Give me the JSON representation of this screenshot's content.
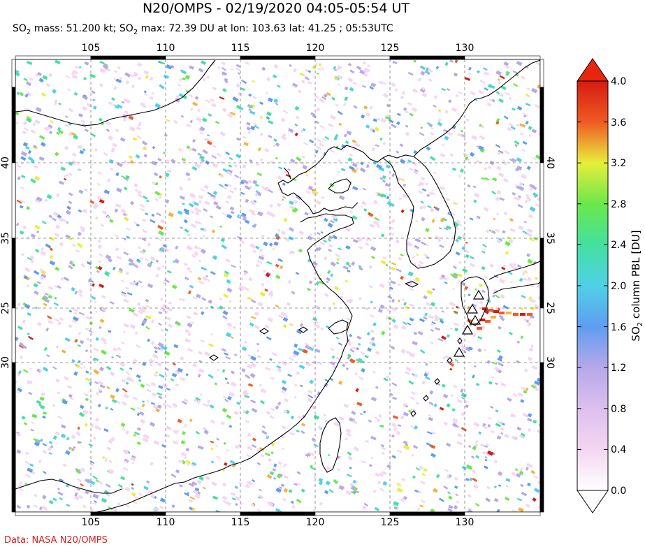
{
  "header": {
    "title": "N20/OMPS - 02/19/2020 04:05-05:54 UT",
    "mass_label": "mass: 51.200 kt;",
    "max_label": "max: 72.39 DU at lon: 103.63 lat: 41.25 ; 05:53UTC"
  },
  "map": {
    "lon_ticks": [
      "105",
      "110",
      "115",
      "120",
      "125",
      "130"
    ],
    "lat_ticks": [
      "40",
      "35",
      "30",
      "25"
    ],
    "lon_range": [
      100,
      135
    ],
    "lat_range": [
      20,
      45
    ],
    "ocean_color": "#ffffff",
    "coastline_color": "#000000",
    "volcano_marker": "triangle-icon"
  },
  "colorbar": {
    "ticks": [
      "4.0",
      "3.6",
      "3.2",
      "2.8",
      "2.4",
      "2.0",
      "1.6",
      "1.2",
      "0.8",
      "0.4",
      "0.0"
    ],
    "label": "column PBL [DU]",
    "colors": [
      "#ffffff",
      "#f4d6f2",
      "#b6a8ea",
      "#5f9df0",
      "#4fd1e6",
      "#44e0a0",
      "#6be84a",
      "#e8ee3a",
      "#f7b23a",
      "#f05a24",
      "#d41c12"
    ]
  },
  "footer": {
    "credit": "Data: NASA N20/OMPS"
  }
}
